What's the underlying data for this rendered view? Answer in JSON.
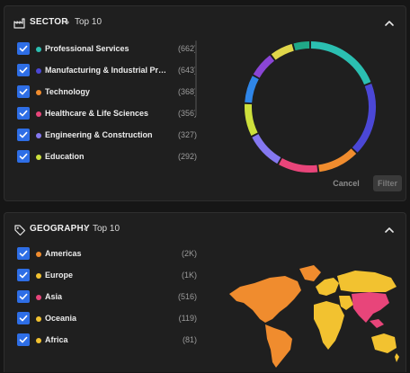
{
  "sector": {
    "title": "SECTOR",
    "separator": "•",
    "subtitle": "Top 10",
    "items": [
      {
        "label": "Professional Services",
        "count": "(662)",
        "color": "#2bbfb1"
      },
      {
        "label": "Manufacturing & Industrial Prod...",
        "count": "(643)",
        "color": "#4b47d6"
      },
      {
        "label": "Technology",
        "count": "(368)",
        "color": "#f08c2e"
      },
      {
        "label": "Healthcare & Life Sciences",
        "count": "(356)",
        "color": "#e8457a"
      },
      {
        "label": "Engineering & Construction",
        "count": "(327)",
        "color": "#8578f0"
      },
      {
        "label": "Education",
        "count": "(292)",
        "color": "#cde03c"
      }
    ],
    "donut_segments": [
      {
        "color": "#2bbfb1",
        "value": 662
      },
      {
        "color": "#4b47d6",
        "value": 643
      },
      {
        "color": "#f08c2e",
        "value": 368
      },
      {
        "color": "#e8457a",
        "value": 356
      },
      {
        "color": "#8578f0",
        "value": 327
      },
      {
        "color": "#cde03c",
        "value": 292
      },
      {
        "color": "#2f86e8",
        "value": 250
      },
      {
        "color": "#8a45d6",
        "value": 230
      },
      {
        "color": "#e0d64a",
        "value": 210
      },
      {
        "color": "#20a888",
        "value": 150
      }
    ],
    "cancel_label": "Cancel",
    "filter_label": "Filter"
  },
  "geography": {
    "title": "GEOGRAPHY",
    "separator": "•",
    "subtitle": "Top 10",
    "items": [
      {
        "label": "Americas",
        "count": "(2K)",
        "color": "#f08c2e"
      },
      {
        "label": "Europe",
        "count": "(1K)",
        "color": "#f2c230"
      },
      {
        "label": "Asia",
        "count": "(516)",
        "color": "#e8457a"
      },
      {
        "label": "Oceania",
        "count": "(119)",
        "color": "#f2c230"
      },
      {
        "label": "Africa",
        "count": "(81)",
        "color": "#f2c230"
      }
    ]
  },
  "icons": {
    "sector_icon": "factory-icon",
    "geography_icon": "tag-icon",
    "collapse_icon": "chevron-up-icon",
    "check_icon": "check-icon"
  },
  "colors": {
    "accent_blue": "#2e6ee6",
    "panel_bg": "#1f1f1f",
    "page_bg": "#161616"
  }
}
